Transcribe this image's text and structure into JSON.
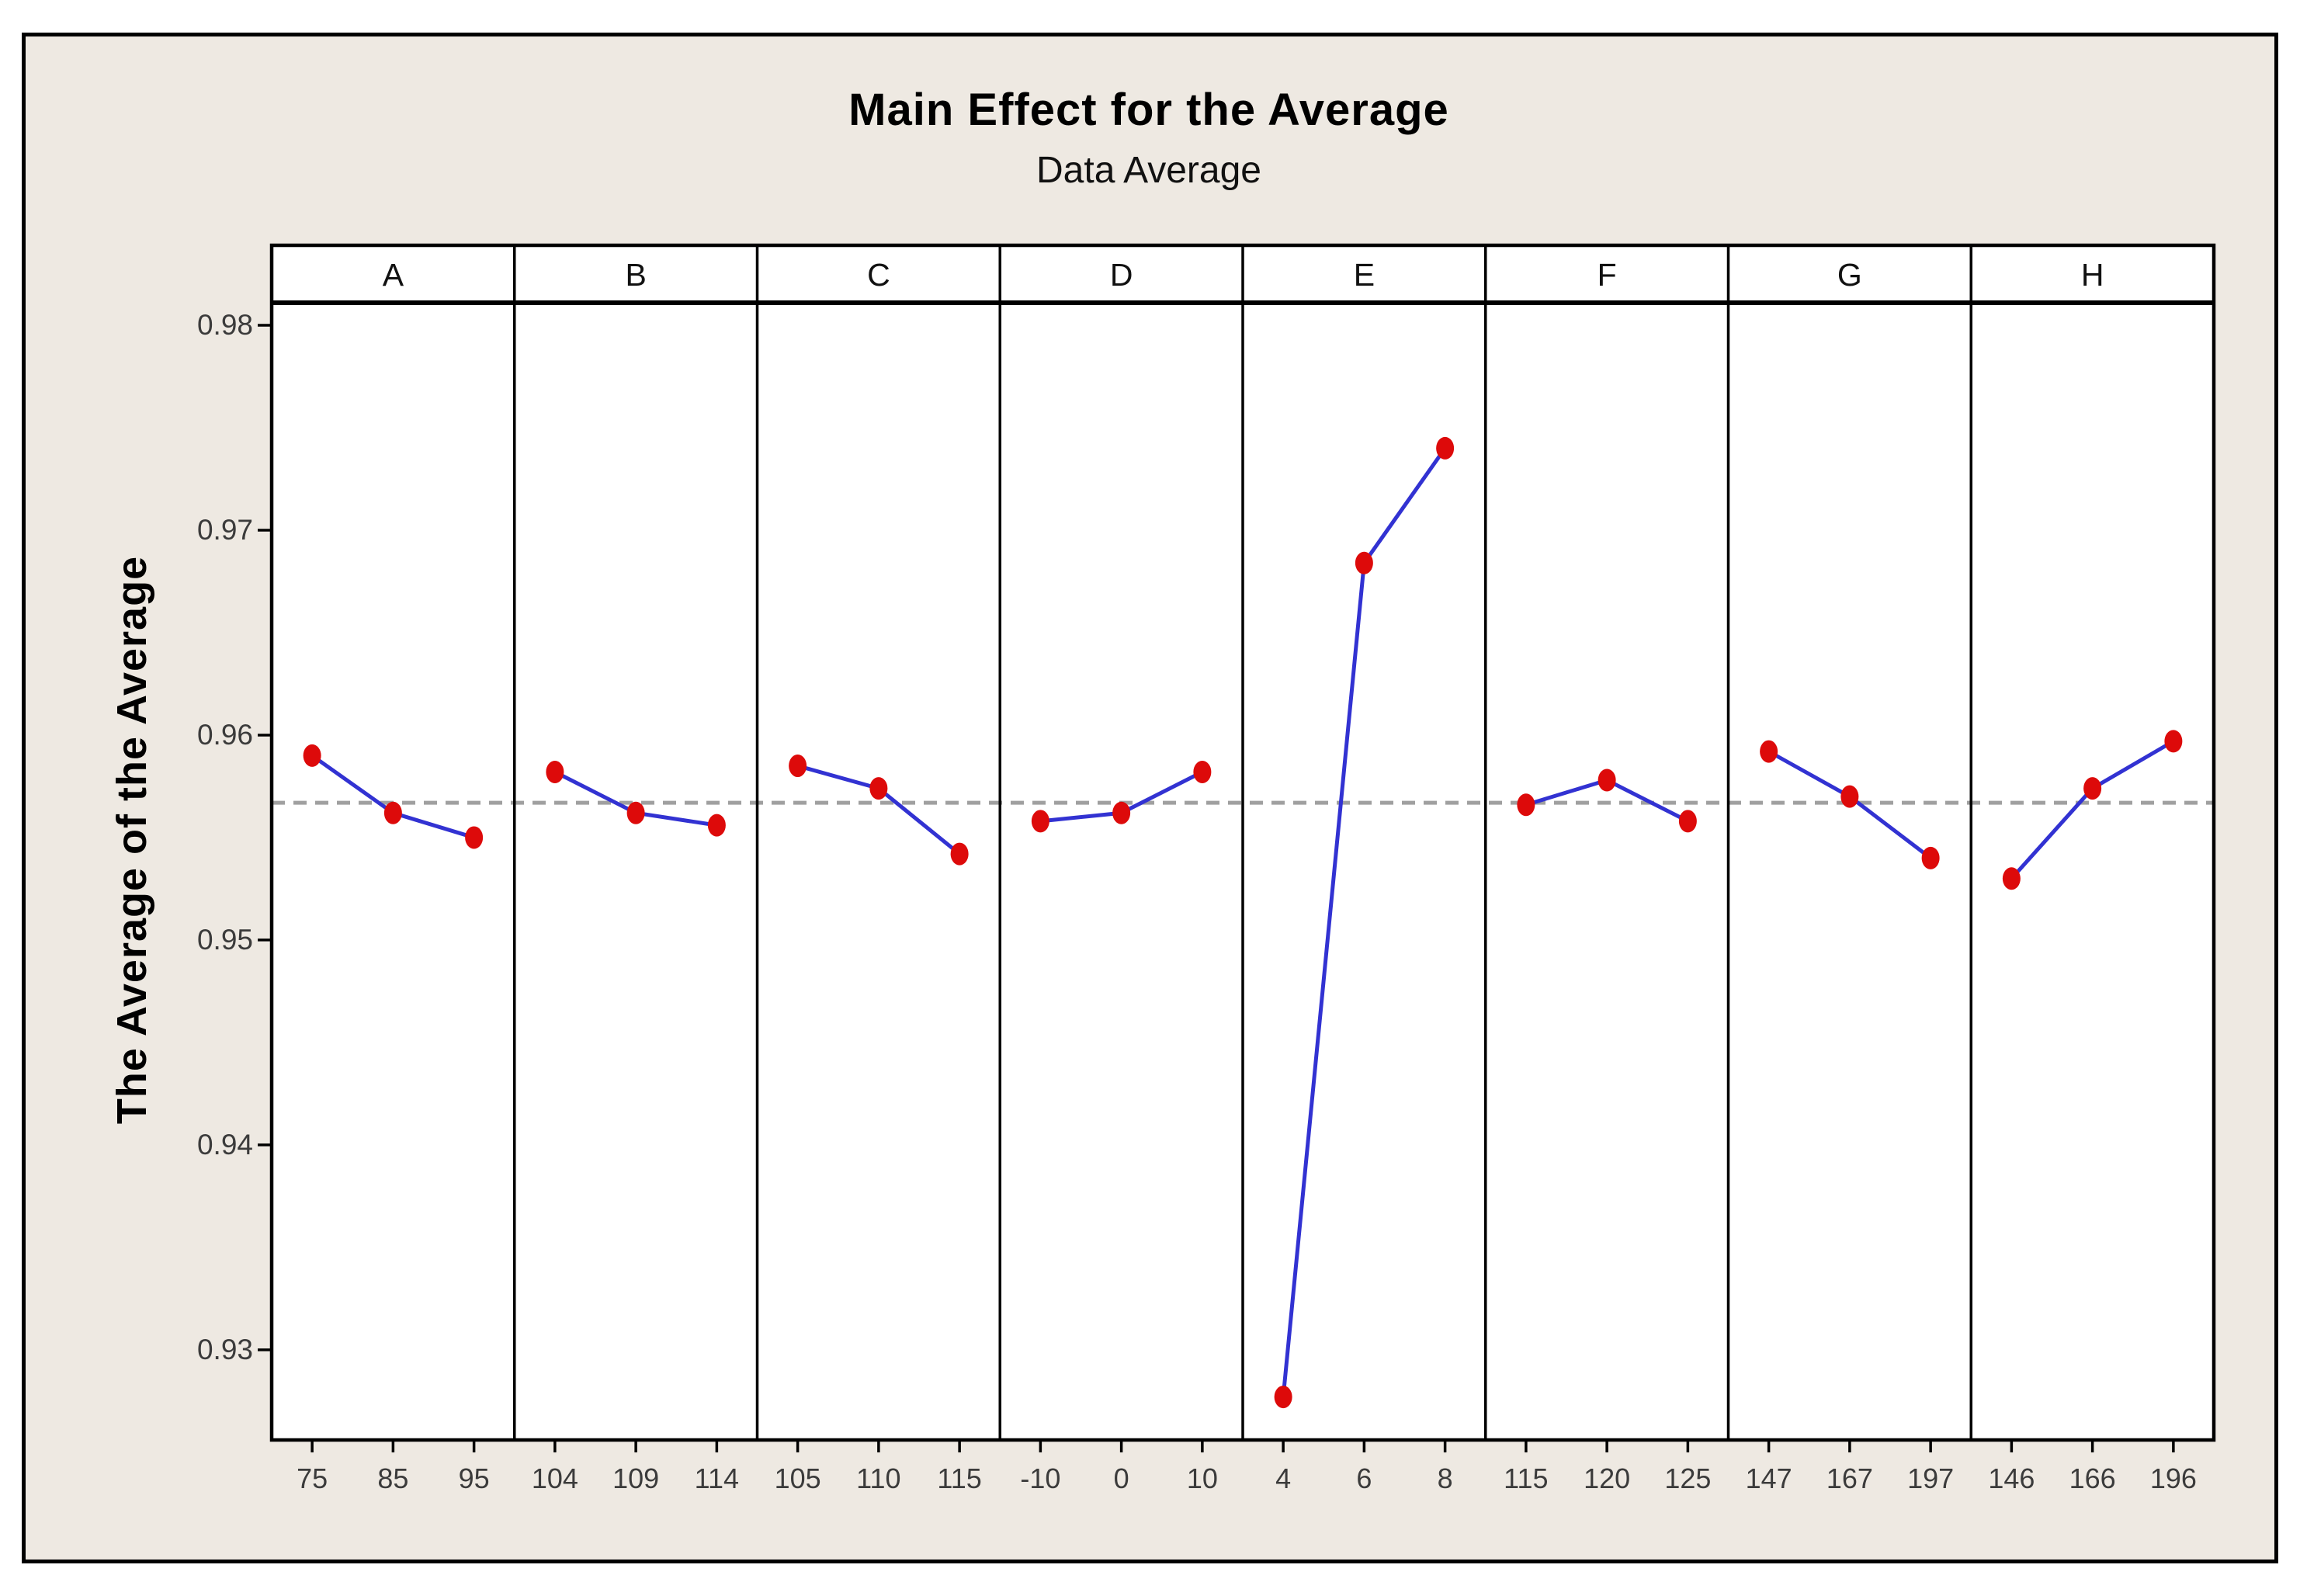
{
  "chart": {
    "title": "Main Effect for the Average",
    "subtitle": "Data Average",
    "ylabel": "The Average of the Average"
  },
  "chart_data": {
    "type": "line",
    "layout": "main-effects-paneled",
    "title": "Main Effect for the Average",
    "subtitle": "Data Average",
    "ylabel": "The Average of the Average",
    "ylim": [
      0.9256,
      0.9811
    ],
    "yticks": [
      0.98,
      0.97,
      0.96,
      0.95,
      0.94,
      0.93
    ],
    "grand_mean_reference": 0.9567,
    "grid": false,
    "legend": "none",
    "panels": [
      {
        "factor": "A",
        "levels": [
          "75",
          "85",
          "95"
        ],
        "values": [
          0.959,
          0.9562,
          0.955
        ]
      },
      {
        "factor": "B",
        "levels": [
          "104",
          "109",
          "114"
        ],
        "values": [
          0.9582,
          0.9562,
          0.9556
        ]
      },
      {
        "factor": "C",
        "levels": [
          "105",
          "110",
          "115"
        ],
        "values": [
          0.9585,
          0.9574,
          0.9542
        ]
      },
      {
        "factor": "D",
        "levels": [
          "-10",
          "0",
          "10"
        ],
        "values": [
          0.9558,
          0.9562,
          0.9582
        ]
      },
      {
        "factor": "E",
        "levels": [
          "4",
          "6",
          "8"
        ],
        "values": [
          0.9277,
          0.9684,
          0.974
        ]
      },
      {
        "factor": "F",
        "levels": [
          "115",
          "120",
          "125"
        ],
        "values": [
          0.9566,
          0.9578,
          0.9558
        ]
      },
      {
        "factor": "G",
        "levels": [
          "147",
          "167",
          "197"
        ],
        "values": [
          0.9592,
          0.957,
          0.954
        ]
      },
      {
        "factor": "H",
        "levels": [
          "146",
          "166",
          "196"
        ],
        "values": [
          0.953,
          0.9574,
          0.9597
        ]
      }
    ],
    "colors": {
      "background": "#EEE9E2",
      "panel_background": "#FFFFFF",
      "border": "#000000",
      "series_line": "#3232D2",
      "marker": "#DD0A0A",
      "reference_line": "#A0A0A0",
      "tick_text": "#3B3B3B",
      "panel_label_text": "#111111"
    }
  }
}
